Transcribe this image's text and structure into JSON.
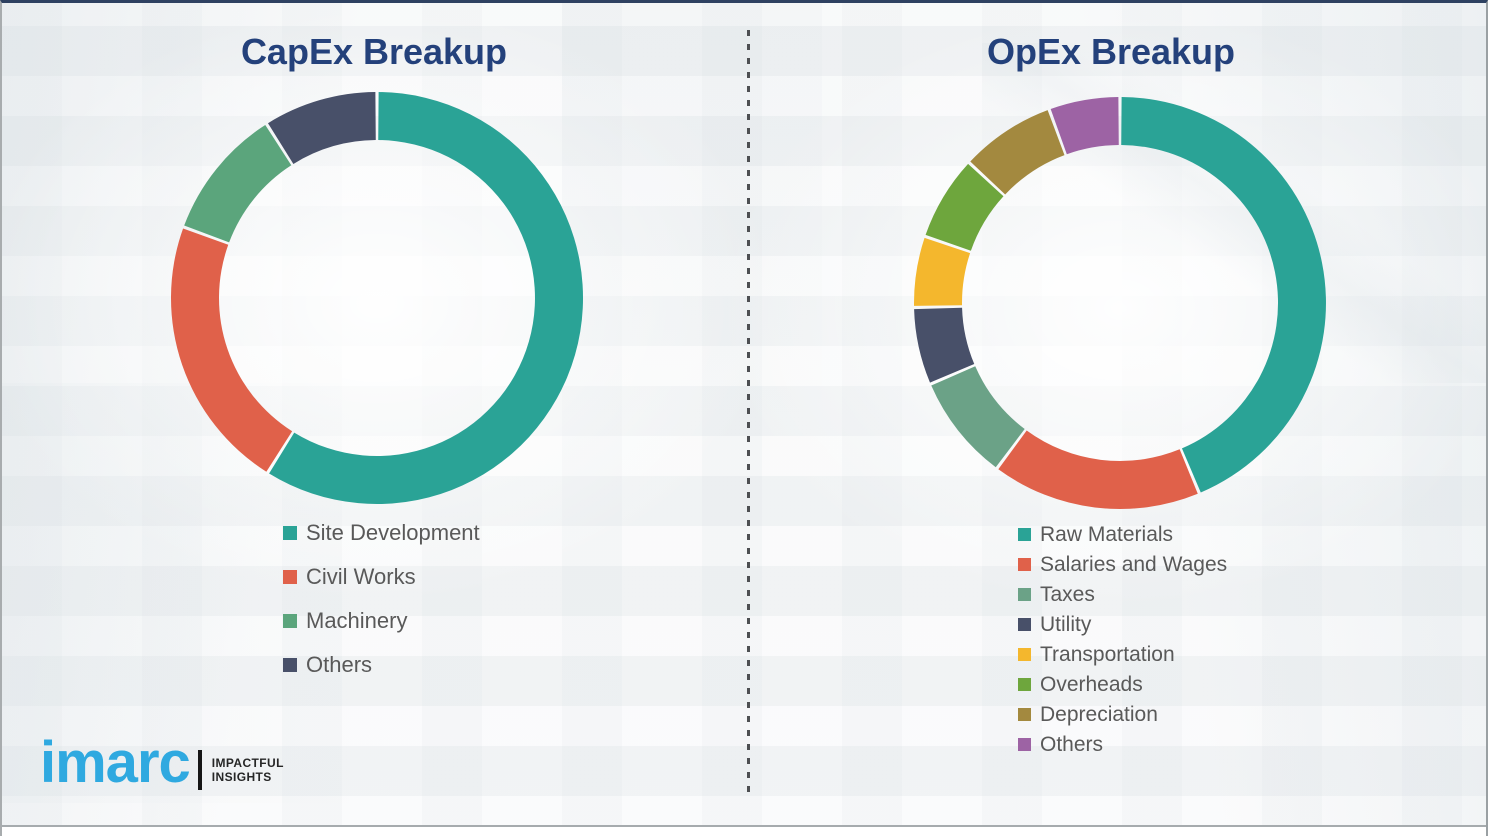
{
  "logo": {
    "brand": "imarc",
    "tagline_line1": "IMPACTFUL",
    "tagline_line2": "INSIGHTS",
    "brand_color": "#2fa9e0"
  },
  "chart_data": [
    {
      "type": "pie",
      "donut": true,
      "title": "CapEx Breakup",
      "start_angle_deg": 0,
      "direction": "clockwise",
      "labels": [
        "Site Development",
        "Civil Works",
        "Machinery",
        "Others"
      ],
      "values_pct": [
        58.9,
        21.7,
        10.4,
        9.0
      ],
      "colors": [
        "#2aa396",
        "#e0614a",
        "#5ba57c",
        "#485069"
      ],
      "legend_position": "bottom-left",
      "data_labels_shown": false
    },
    {
      "type": "pie",
      "donut": true,
      "title": "OpEx Breakup",
      "start_angle_deg": 0,
      "direction": "clockwise",
      "labels": [
        "Raw Materials",
        "Salaries and Wages",
        "Taxes",
        "Utility",
        "Transportation",
        "Overheads",
        "Depreciation",
        "Others"
      ],
      "values_pct": [
        43.8,
        16.5,
        8.4,
        6.1,
        5.6,
        6.7,
        7.5,
        5.6
      ],
      "colors": [
        "#2aa396",
        "#e0614a",
        "#6ba287",
        "#485069",
        "#f4b72d",
        "#6ea63d",
        "#a3893f",
        "#9d63a4"
      ],
      "legend_position": "bottom-left",
      "data_labels_shown": false
    }
  ],
  "frame": {
    "divider_style": "dashed-vertical",
    "accent_title_color": "#24417b",
    "legend_text_color": "#595959"
  }
}
